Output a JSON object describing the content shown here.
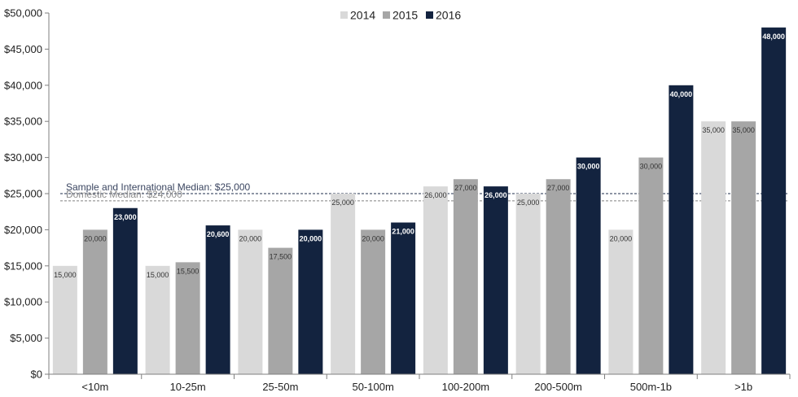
{
  "chart_data": {
    "type": "bar",
    "title": "",
    "xlabel": "",
    "ylabel": "",
    "categories": [
      "<10m",
      "10-25m",
      "25-50m",
      "50-100m",
      "100-200m",
      "200-500m",
      "500m-1b",
      ">1b"
    ],
    "series": [
      {
        "name": "2014",
        "color": "#d9d9d9",
        "label_color": "#333333",
        "label_bold": false,
        "values": [
          15000,
          15000,
          20000,
          25000,
          26000,
          25000,
          20000,
          35000
        ],
        "labels": [
          "15,000",
          "15,000",
          "20,000",
          "25,000",
          "26,000",
          "25,000",
          "20,000",
          "35,000"
        ]
      },
      {
        "name": "2015",
        "color": "#a6a6a6",
        "label_color": "#333333",
        "label_bold": false,
        "values": [
          20000,
          15500,
          17500,
          20000,
          27000,
          27000,
          30000,
          35000
        ],
        "labels": [
          "20,000",
          "15,500",
          "17,500",
          "20,000",
          "27,000",
          "27,000",
          "30,000",
          "35,000"
        ]
      },
      {
        "name": "2016",
        "color": "#13233f",
        "label_color": "#ffffff",
        "label_bold": true,
        "values": [
          23000,
          20600,
          20000,
          21000,
          26000,
          30000,
          40000,
          48000
        ],
        "labels": [
          "23,000",
          "20,600",
          "20,000",
          "21,000",
          "26,000",
          "30,000",
          "40,000",
          "48,000"
        ]
      }
    ],
    "ylim": [
      0,
      50000
    ],
    "yticks": [
      0,
      5000,
      10000,
      15000,
      20000,
      25000,
      30000,
      35000,
      40000,
      45000,
      50000
    ],
    "ytick_labels": [
      "$0",
      "$5,000",
      "$10,000",
      "$15,000",
      "$20,000",
      "$25,000",
      "$30,000",
      "$35,000",
      "$40,000",
      "$45,000",
      "$50,000"
    ],
    "reference_lines": [
      {
        "value": 25000,
        "label": "Sample and International Median: $25,000",
        "line_color": "#1f2d4d",
        "text_color": "#3a4560"
      },
      {
        "value": 24000,
        "label": "Domestic Median: $24,000",
        "line_color": "#808080",
        "text_color": "#8c8c8c"
      }
    ],
    "legend_position": "top-center",
    "grid": false
  }
}
